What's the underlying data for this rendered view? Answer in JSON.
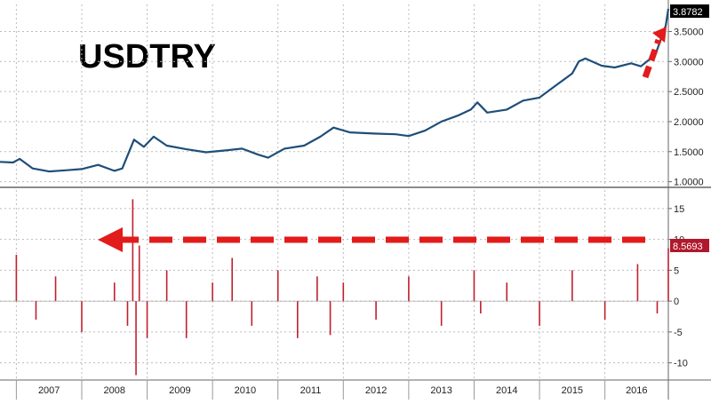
{
  "chart_data": [
    {
      "type": "line",
      "title": "USDTRY",
      "xlabel": "",
      "ylabel": "",
      "x_ticks": [
        "2007",
        "2008",
        "2009",
        "2010",
        "2011",
        "2012",
        "2013",
        "2014",
        "2015",
        "2016"
      ],
      "y_ticks": [
        "1.0000",
        "1.5000",
        "2.0000",
        "2.5000",
        "3.0000",
        "3.5000"
      ],
      "xlim": [
        2006.75,
        2016.97
      ],
      "ylim": [
        0.95,
        3.95
      ],
      "grid": true,
      "series": [
        {
          "color": "#1f4e79",
          "x": [
            2006.75,
            2006.95,
            2007.05,
            2007.25,
            2007.5,
            2007.75,
            2008.0,
            2008.25,
            2008.5,
            2008.62,
            2008.8,
            2008.95,
            2009.1,
            2009.3,
            2009.6,
            2009.9,
            2010.2,
            2010.45,
            2010.7,
            2010.85,
            2011.1,
            2011.4,
            2011.65,
            2011.85,
            2012.1,
            2012.5,
            2012.8,
            2013.0,
            2013.25,
            2013.5,
            2013.75,
            2013.95,
            2014.05,
            2014.2,
            2014.5,
            2014.75,
            2015.0,
            2015.25,
            2015.5,
            2015.6,
            2015.7,
            2015.95,
            2016.15,
            2016.4,
            2016.55,
            2016.7,
            2016.8,
            2016.88,
            2016.93,
            2016.97
          ],
          "y": [
            1.33,
            1.32,
            1.38,
            1.22,
            1.17,
            1.19,
            1.21,
            1.28,
            1.18,
            1.22,
            1.7,
            1.58,
            1.75,
            1.6,
            1.54,
            1.49,
            1.52,
            1.55,
            1.45,
            1.4,
            1.55,
            1.6,
            1.75,
            1.9,
            1.82,
            1.8,
            1.79,
            1.76,
            1.85,
            2.0,
            2.1,
            2.2,
            2.32,
            2.15,
            2.2,
            2.35,
            2.4,
            2.6,
            2.8,
            3.0,
            3.05,
            2.93,
            2.9,
            2.97,
            2.92,
            3.05,
            3.2,
            3.45,
            3.6,
            3.8782
          ]
        }
      ],
      "last_value_label": "3.8782",
      "annotations": [
        "dashed red arrow pointing to latest value"
      ]
    },
    {
      "type": "bar",
      "xlabel": "",
      "ylabel": "",
      "x_ticks": [
        "2007",
        "2008",
        "2009",
        "2010",
        "2011",
        "2012",
        "2013",
        "2014",
        "2015",
        "2016"
      ],
      "y_ticks": [
        "-10",
        "-5",
        "0",
        "5",
        "10",
        "15"
      ],
      "xlim": [
        2006.75,
        2016.97
      ],
      "ylim": [
        -12.5,
        18
      ],
      "grid": true,
      "series": [
        {
          "color": "#c0202e",
          "note": "weekly percentage change, dense noisy bars",
          "x": [
            2007.0,
            2007.3,
            2007.6,
            2008.0,
            2008.5,
            2008.7,
            2008.78,
            2008.83,
            2008.88,
            2009.0,
            2009.3,
            2009.6,
            2010.0,
            2010.3,
            2010.6,
            2011.0,
            2011.3,
            2011.6,
            2011.8,
            2012.0,
            2012.5,
            2013.0,
            2013.5,
            2014.0,
            2014.1,
            2014.5,
            2015.0,
            2015.5,
            2016.0,
            2016.5,
            2016.8,
            2016.97
          ],
          "y": [
            7.5,
            -3,
            4,
            -5,
            3,
            -4,
            16.5,
            -12,
            9,
            -6,
            5,
            -6,
            3,
            7,
            -4,
            5,
            -6,
            4,
            -5.5,
            3,
            -3,
            4,
            -4,
            5,
            -2,
            3,
            -4,
            5,
            -3,
            6,
            -2,
            8.5693
          ]
        }
      ],
      "last_value_label": "8.5693",
      "annotations": [
        "dashed red horizontal arrow from latest value back to 2008 spike"
      ]
    }
  ]
}
